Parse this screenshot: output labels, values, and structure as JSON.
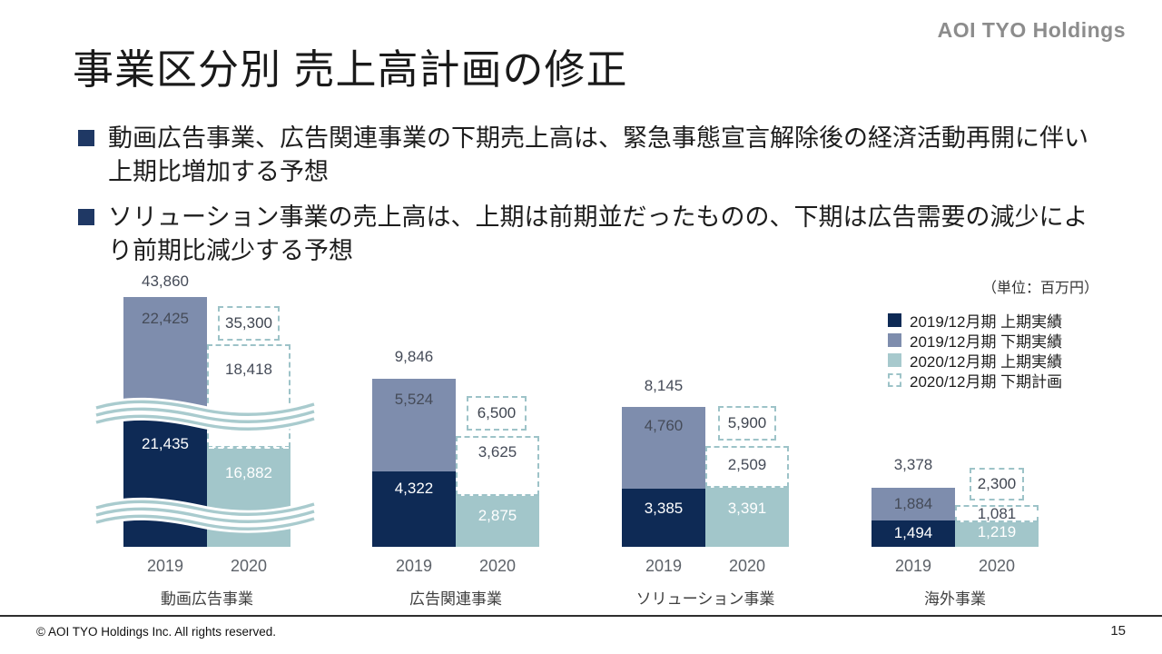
{
  "slide": {
    "logo": "AOI TYO Holdings",
    "title": "事業区分別 売上高計画の修正",
    "bullets": [
      "動画広告事業、広告関連事業の下期売上高は、緊急事態宣言解除後の経済活動再開に伴い上期比増加する予想",
      "ソリューション事業の売上高は、上期は前期並だったものの、下期は広告需要の減少により前期比減少する予想"
    ],
    "unit_label": "（単位：百万円）",
    "copyright": "© AOI TYO Holdings Inc. All rights reserved.",
    "page_number": "15"
  },
  "legend": {
    "items": [
      {
        "label": "2019/12月期 上期実績",
        "color": "#0e2a55",
        "style": "solid"
      },
      {
        "label": "2019/12月期 下期実績",
        "color": "#7e8dad",
        "style": "solid"
      },
      {
        "label": "2020/12月期 上期実績",
        "color": "#a2c6ca",
        "style": "solid"
      },
      {
        "label": "2020/12月期 下期計画",
        "color": "#ffffff",
        "style": "dashed"
      }
    ]
  },
  "colors": {
    "navy": "#0e2a55",
    "blue_gray": "#7e8dad",
    "teal": "#a2c6ca",
    "dashed_border": "#9dc3c8",
    "wave": "#a9cbce"
  },
  "chart_data": {
    "type": "bar",
    "stacked": true,
    "unit": "百万円",
    "legend_position": "right",
    "grid": false,
    "series_labels": [
      "2019/12月期 上期実績",
      "2019/12月期 下期実績",
      "2020/12月期 上期実績",
      "2020/12月期 下期計画"
    ],
    "groups": [
      {
        "category": "動画広告事業",
        "axis_break": true,
        "bars": [
          {
            "year": "2019",
            "total": 43860,
            "total_label": "43,860",
            "segments": [
              {
                "series": "2019/12月期 上期実績",
                "value": 21435,
                "label": "21,435"
              },
              {
                "series": "2019/12月期 下期実績",
                "value": 22425,
                "label": "22,425"
              }
            ]
          },
          {
            "year": "2020",
            "total": 35300,
            "total_label": "35,300",
            "segments": [
              {
                "series": "2020/12月期 上期実績",
                "value": 16882,
                "label": "16,882"
              },
              {
                "series": "2020/12月期 下期計画",
                "value": 18418,
                "label": "18,418"
              }
            ]
          }
        ]
      },
      {
        "category": "広告関連事業",
        "axis_break": false,
        "bars": [
          {
            "year": "2019",
            "total": 9846,
            "total_label": "9,846",
            "segments": [
              {
                "series": "2019/12月期 上期実績",
                "value": 4322,
                "label": "4,322"
              },
              {
                "series": "2019/12月期 下期実績",
                "value": 5524,
                "label": "5,524"
              }
            ]
          },
          {
            "year": "2020",
            "total": 6500,
            "total_label": "6,500",
            "segments": [
              {
                "series": "2020/12月期 上期実績",
                "value": 2875,
                "label": "2,875"
              },
              {
                "series": "2020/12月期 下期計画",
                "value": 3625,
                "label": "3,625"
              }
            ]
          }
        ]
      },
      {
        "category": "ソリューション事業",
        "axis_break": false,
        "bars": [
          {
            "year": "2019",
            "total": 8145,
            "total_label": "8,145",
            "segments": [
              {
                "series": "2019/12月期 上期実績",
                "value": 3385,
                "label": "3,385"
              },
              {
                "series": "2019/12月期 下期実績",
                "value": 4760,
                "label": "4,760"
              }
            ]
          },
          {
            "year": "2020",
            "total": 5900,
            "total_label": "5,900",
            "segments": [
              {
                "series": "2020/12月期 上期実績",
                "value": 3391,
                "label": "3,391"
              },
              {
                "series": "2020/12月期 下期計画",
                "value": 2509,
                "label": "2,509"
              }
            ]
          }
        ]
      },
      {
        "category": "海外事業",
        "axis_break": false,
        "bars": [
          {
            "year": "2019",
            "total": 3378,
            "total_label": "3,378",
            "segments": [
              {
                "series": "2019/12月期 上期実績",
                "value": 1494,
                "label": "1,494"
              },
              {
                "series": "2019/12月期 下期実績",
                "value": 1884,
                "label": "1,884"
              }
            ]
          },
          {
            "year": "2020",
            "total": 2300,
            "total_label": "2,300",
            "segments": [
              {
                "series": "2020/12月期 上期実績",
                "value": 1219,
                "label": "1,219"
              },
              {
                "series": "2020/12月期 下期計画",
                "value": 1081,
                "label": "1,081"
              }
            ]
          }
        ]
      }
    ]
  }
}
